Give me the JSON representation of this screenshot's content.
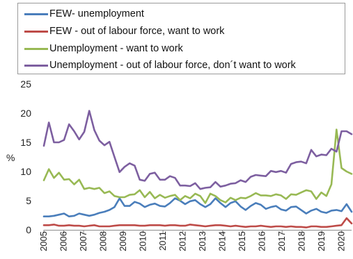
{
  "chart_data": {
    "type": "line",
    "ylabel": "%",
    "ylim": [
      0,
      25
    ],
    "yticks": [
      0,
      5,
      10,
      15,
      20,
      25
    ],
    "x_tick_labels": [
      "2005",
      "2006",
      "2007",
      "2008",
      "2009",
      "2010",
      "2011",
      "2012",
      "2013",
      "2014",
      "2015",
      "2016",
      "2017",
      "2018",
      "2019",
      "2020"
    ],
    "x_start_year": 2005,
    "x_end_year": 2020.5,
    "legend_position": "top",
    "grid": "none",
    "series": [
      {
        "name": "FEW- unemployment",
        "color": "#4a7ebb",
        "values": [
          2.3,
          2.3,
          2.4,
          2.6,
          2.8,
          2.3,
          2.4,
          2.8,
          2.6,
          2.4,
          2.6,
          2.9,
          3.1,
          3.4,
          3.9,
          5.4,
          4.1,
          4.1,
          4.8,
          4.5,
          3.9,
          4.3,
          4.5,
          4.1,
          4.0,
          4.6,
          5.4,
          5.0,
          4.4,
          4.9,
          5.1,
          4.4,
          3.9,
          4.4,
          5.4,
          4.6,
          3.9,
          4.6,
          4.9,
          4.0,
          3.4,
          4.1,
          4.6,
          4.3,
          3.6,
          3.9,
          4.1,
          3.5,
          3.3,
          3.9,
          4.0,
          3.4,
          2.8,
          3.3,
          3.6,
          3.1,
          2.9,
          3.3,
          3.4,
          3.2,
          4.4,
          3.1
        ]
      },
      {
        "name": "FEW - out of labour force, want to work",
        "color": "#be4b48",
        "values": [
          0.8,
          0.8,
          0.9,
          0.7,
          0.7,
          0.8,
          0.7,
          0.7,
          0.6,
          0.7,
          0.8,
          0.6,
          0.6,
          0.6,
          0.7,
          0.8,
          0.8,
          0.8,
          0.8,
          0.7,
          0.7,
          0.8,
          0.8,
          0.8,
          0.7,
          0.8,
          0.8,
          0.7,
          0.7,
          0.9,
          0.8,
          0.7,
          0.6,
          0.7,
          0.8,
          0.8,
          0.7,
          0.6,
          0.7,
          0.6,
          0.5,
          0.6,
          0.6,
          0.7,
          0.6,
          0.5,
          0.6,
          0.6,
          0.5,
          0.6,
          0.5,
          0.5,
          0.4,
          0.6,
          0.6,
          0.5,
          0.5,
          0.6,
          0.7,
          0.8,
          2.0,
          1.1
        ]
      },
      {
        "name": "Unemployment - want to work",
        "color": "#98b954",
        "values": [
          8.5,
          10.4,
          8.9,
          9.8,
          8.6,
          8.7,
          7.8,
          8.6,
          7.0,
          7.2,
          7.0,
          7.2,
          6.3,
          6.6,
          5.8,
          5.6,
          5.6,
          6.0,
          6.1,
          6.8,
          5.6,
          6.5,
          5.4,
          6.0,
          5.5,
          5.8,
          6.0,
          5.1,
          5.8,
          5.4,
          6.2,
          5.8,
          4.6,
          6.2,
          5.8,
          5.1,
          4.7,
          5.5,
          5.1,
          5.5,
          5.4,
          5.8,
          6.3,
          5.9,
          5.9,
          5.8,
          6.1,
          5.9,
          5.3,
          6.1,
          6.0,
          6.4,
          6.8,
          6.6,
          5.3,
          6.4,
          5.8,
          7.8,
          17.2,
          10.6,
          10.0,
          9.6
        ]
      },
      {
        "name": "Unemployment - out of labour force, don´t want to work",
        "color": "#7d5fa0",
        "values": [
          14.4,
          18.4,
          15.0,
          15.0,
          15.4,
          18.1,
          16.9,
          15.5,
          16.8,
          20.4,
          17.1,
          15.3,
          14.5,
          15.1,
          12.5,
          9.9,
          10.8,
          11.4,
          11.0,
          8.6,
          8.4,
          9.6,
          9.8,
          8.6,
          8.6,
          9.2,
          8.9,
          7.6,
          7.6,
          7.5,
          8.0,
          7.0,
          7.2,
          7.3,
          8.2,
          7.4,
          7.6,
          7.9,
          8.0,
          8.5,
          8.2,
          9.1,
          9.4,
          9.3,
          9.2,
          10.1,
          9.9,
          10.1,
          9.8,
          11.3,
          11.6,
          11.7,
          11.4,
          13.7,
          12.6,
          12.9,
          12.8,
          13.9,
          13.4,
          16.9,
          16.9,
          16.4
        ]
      }
    ]
  }
}
